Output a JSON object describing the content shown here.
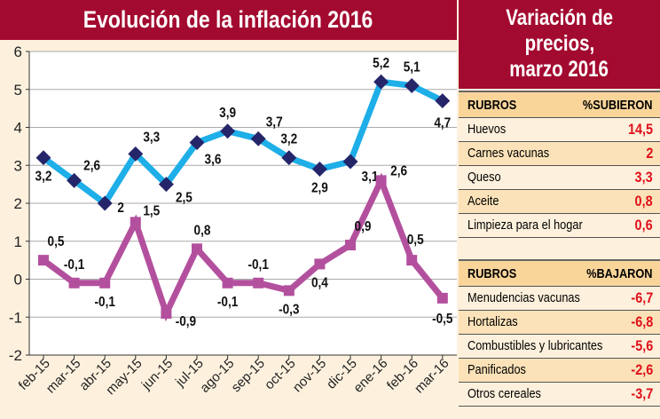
{
  "left_title": "Evolución de la inflación 2016",
  "right_title": [
    "Variación de",
    "precios,",
    "marzo 2016"
  ],
  "chart_data": {
    "type": "line",
    "title": "Evolución de la inflación 2016",
    "categories": [
      "feb-15",
      "mar-15",
      "abr-15",
      "may-15",
      "jun-15",
      "jul-15",
      "ago-15",
      "sep-15",
      "oct-15",
      "nov-15",
      "dic-15",
      "ene-16",
      "feb-16",
      "mar-16"
    ],
    "series": [
      {
        "color": "#1eaee8",
        "marker": "diamond",
        "marker_color": "#25266a",
        "values": [
          3.2,
          2.6,
          2,
          3.3,
          2.5,
          3.6,
          3.9,
          3.7,
          3.2,
          2.9,
          3.1,
          5.2,
          5.1,
          4.7
        ],
        "labels": [
          "3,2",
          "2,6",
          "2",
          "3,3",
          "2,5",
          "3,6",
          "3,9",
          "3,7",
          "3,2",
          "2,9",
          "3,1",
          "5,2",
          "5,1",
          "4,7"
        ]
      },
      {
        "color": "#b3509e",
        "marker": "square",
        "marker_color": "#b3509e",
        "values": [
          0.5,
          -0.1,
          -0.1,
          1.5,
          -0.9,
          0.8,
          -0.1,
          -0.1,
          -0.3,
          0.4,
          0.9,
          2.6,
          0.5,
          -0.5
        ],
        "labels": [
          "0,5",
          "-0,1",
          "-0,1",
          "1,5",
          "-0,9",
          "0,8",
          "-0,1",
          "-0,1",
          "-0,3",
          "0,4",
          "0,9",
          "2,6",
          "0,5",
          "-0,5"
        ]
      }
    ],
    "ylim": [
      -2,
      6
    ],
    "yticks": [
      "-2",
      "-1",
      "0",
      "1",
      "2",
      "3",
      "4",
      "5",
      "6"
    ],
    "grid": true
  },
  "table_up": {
    "header": [
      "RUBROS",
      "%SUBIERON"
    ],
    "rows": [
      [
        "Huevos",
        "14,5"
      ],
      [
        "Carnes vacunas",
        "2"
      ],
      [
        "Queso",
        "3,3"
      ],
      [
        "Aceite",
        "0,8"
      ],
      [
        "Limpieza para el hogar",
        "0,6"
      ]
    ]
  },
  "table_down": {
    "header": [
      "RUBROS",
      "%BAJARON"
    ],
    "rows": [
      [
        "Menudencias vacunas",
        "-6,7"
      ],
      [
        "Hortalizas",
        "-6,8"
      ],
      [
        "Combustibles y lubricantes",
        "-5,6"
      ],
      [
        "Panificados",
        "-2,6"
      ],
      [
        "Otros cereales",
        "-3,7"
      ]
    ]
  }
}
